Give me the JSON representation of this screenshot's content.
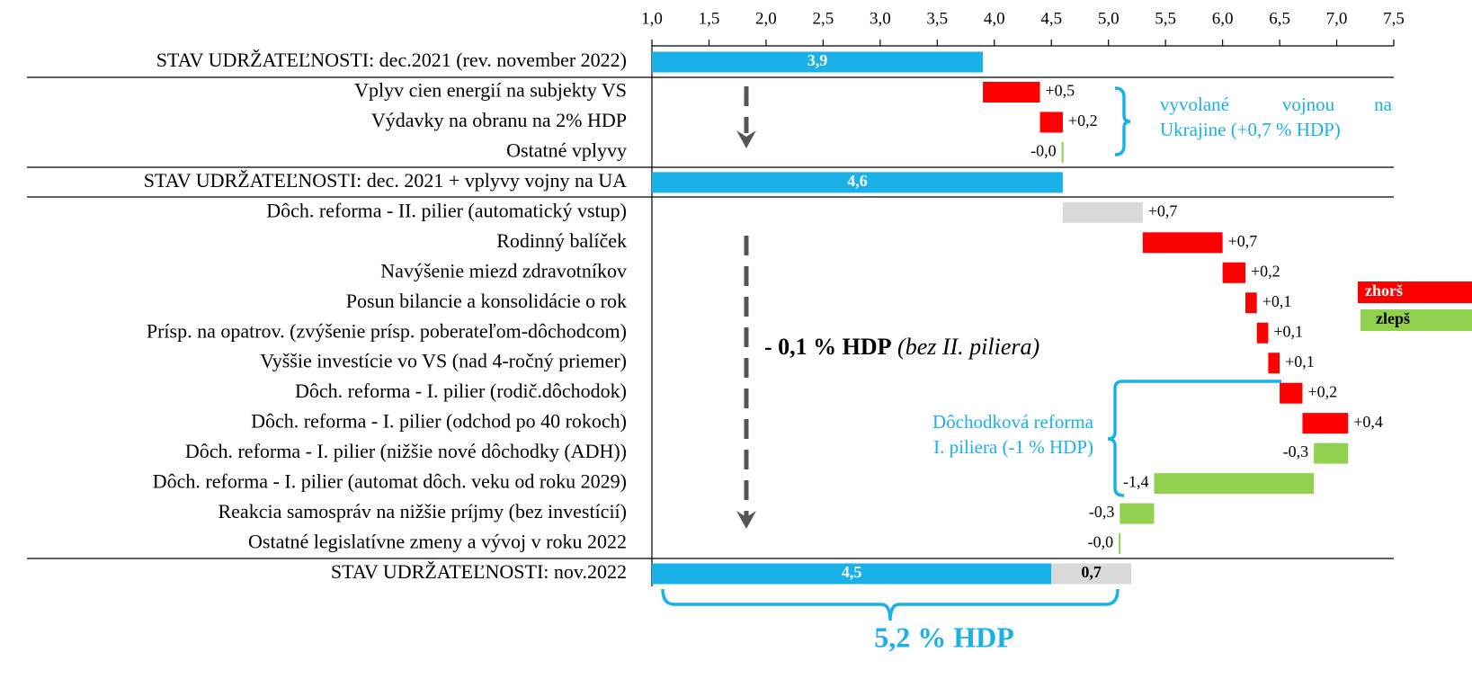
{
  "chart_data": {
    "type": "waterfall",
    "categories": [
      "STAV UDRŽATEĽNOSTI: dec.2021 (rev. november 2022)",
      "Vplyv cien energií na subjekty VS",
      "Výdavky na obranu na 2% HDP",
      "Ostatné vplyvy",
      "STAV UDRŽATEĽNOSTI: dec. 2021 + vplyvy vojny na UA",
      "Dôch. reforma - II. pilier (automatický vstup)",
      "Rodinný balíček",
      "Navýšenie miezd zdravotníkov",
      "Posun bilancie a konsolidácie o rok",
      "Prísp. na opatrov. (zvýšenie prísp. poberateľom-dôchodcom)",
      "Vyššie investície vo VS (nad 4-ročný priemer)",
      "Dôch. reforma - I. pilier (rodič.dôchodok)",
      "Dôch. reforma - I. pilier (odchod po 40 rokoch)",
      "Dôch. reforma - I. pilier (nižšie nové dôchodky (ADH))",
      "Dôch. reforma - I. pilier (automat dôch. veku od roku 2029)",
      "Reakcia samospráv na nižšie príjmy (bez investícií)",
      "Ostatné legislatívne zmeny a vývoj v roku 2022",
      "STAV UDRŽATEĽNOSTI: nov.2022"
    ],
    "values": [
      3.9,
      0.5,
      0.2,
      -0.01,
      4.6,
      0.7,
      0.7,
      0.2,
      0.1,
      0.1,
      0.1,
      0.2,
      0.4,
      -0.3,
      -1.4,
      -0.3,
      -0.01,
      4.5
    ],
    "value_labels": [
      "3,9",
      "+0,5",
      "+0,2",
      "-0,0",
      "4,6",
      "+0,7",
      "+0,7",
      "+0,2",
      "+0,1",
      "+0,1",
      "+0,1",
      "+0,2",
      "+0,4",
      "-0,3",
      "-1,4",
      "-0,3",
      "-0,0",
      "4,5"
    ],
    "measures": [
      "absolute",
      "relative",
      "relative",
      "relative",
      "absolute",
      "relative",
      "relative",
      "relative",
      "relative",
      "relative",
      "relative",
      "relative",
      "relative",
      "relative",
      "relative",
      "relative",
      "relative",
      "absolute"
    ],
    "colors": [
      "#19b1e7",
      "#ff0000",
      "#ff0000",
      "#92d050",
      "#19b1e7",
      "#d9d9d9",
      "#ff0000",
      "#ff0000",
      "#ff0000",
      "#ff0000",
      "#ff0000",
      "#ff0000",
      "#ff0000",
      "#92d050",
      "#92d050",
      "#92d050",
      "#92d050",
      "#19b1e7"
    ],
    "stacked_segment": {
      "value": 0.7,
      "value_label": "0,7",
      "color": "#d9d9d9"
    },
    "xlim": [
      1.0,
      7.5
    ],
    "xticks": [
      {
        "value": 1.0,
        "label": "1,0"
      },
      {
        "value": 1.5,
        "label": "1,5"
      },
      {
        "value": 2.0,
        "label": "2,0"
      },
      {
        "value": 2.5,
        "label": "2,5"
      },
      {
        "value": 3.0,
        "label": "3,0"
      },
      {
        "value": 3.5,
        "label": "3,5"
      },
      {
        "value": 4.0,
        "label": "4,0"
      },
      {
        "value": 4.5,
        "label": "4,5"
      },
      {
        "value": 5.0,
        "label": "5,0"
      },
      {
        "value": 5.5,
        "label": "5,5"
      },
      {
        "value": 6.0,
        "label": "6,0"
      },
      {
        "value": 6.5,
        "label": "6,5"
      },
      {
        "value": 7.0,
        "label": "7,0"
      },
      {
        "value": 7.5,
        "label": "7,5"
      }
    ],
    "legend": [
      {
        "name": "zhorš",
        "color": "#ff0000"
      },
      {
        "name": "zlepš",
        "color": "#92d050"
      }
    ],
    "annotations": {
      "war": [
        "vyvolané",
        "vojnou",
        "na",
        "Ukrajine (+0,7 % HDP)"
      ],
      "middle": [
        "- 0,1 % HDP",
        "(bez II. piliera)"
      ],
      "pension": [
        "Dôchodková reforma",
        "I. piliera (-1 % HDP)"
      ],
      "total": "5,2 % HDP"
    }
  }
}
